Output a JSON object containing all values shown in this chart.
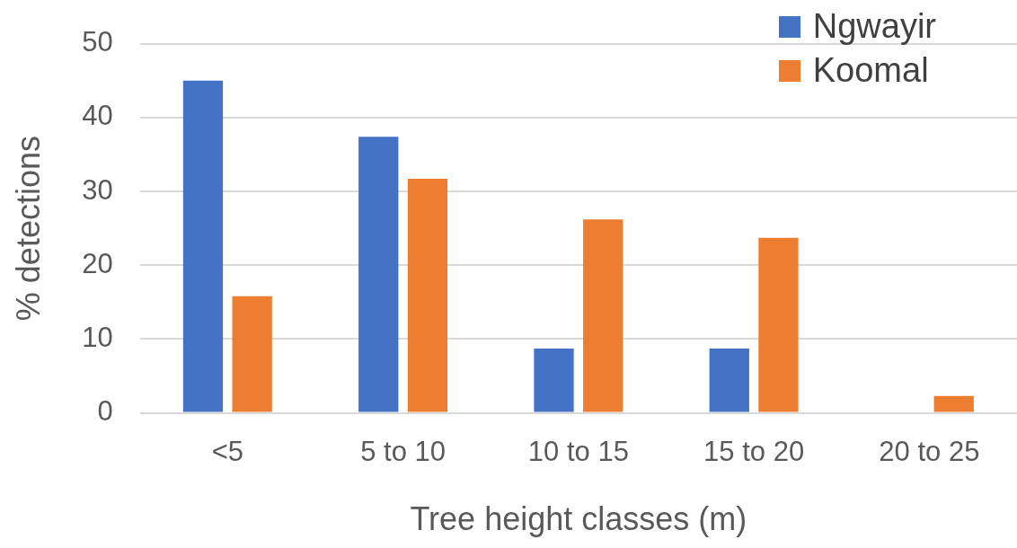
{
  "chart_data": {
    "type": "bar",
    "xlabel": "Tree height classes (m)",
    "ylabel": "% detections",
    "categories": [
      "<5",
      "5 to 10",
      "10 to 15",
      "15 to 20",
      "20 to 25"
    ],
    "series": [
      {
        "name": "Ngwayir",
        "color": "#4472c4",
        "values": [
          45.0,
          37.4,
          8.7,
          8.7,
          0
        ]
      },
      {
        "name": "Koomal",
        "color": "#ed7d31",
        "values": [
          15.8,
          31.7,
          26.2,
          23.7,
          2.3
        ]
      }
    ],
    "ylim": [
      0,
      50
    ],
    "yticks": [
      0,
      10,
      20,
      30,
      40,
      50
    ],
    "grid": "y",
    "legend": "top right"
  }
}
